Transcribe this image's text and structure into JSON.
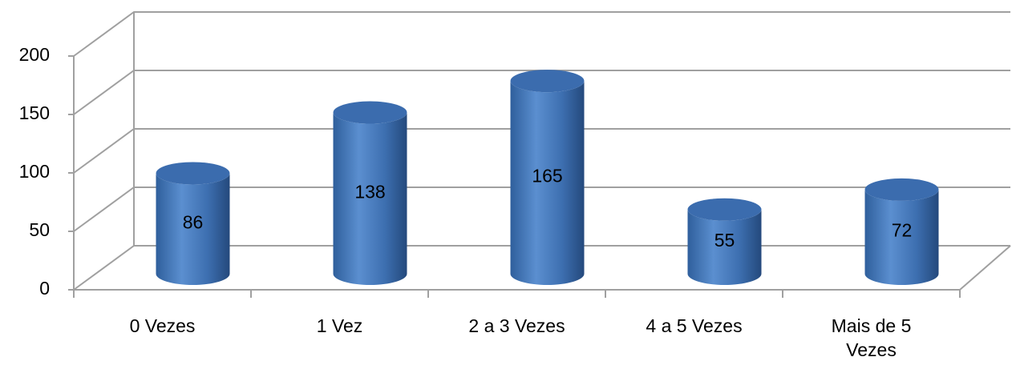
{
  "chart_data": {
    "type": "cylinder",
    "categories": [
      "0 Vezes",
      "1 Vez",
      "2 a 3 Vezes",
      "4 a 5 Vezes",
      "Mais de 5 Vezes"
    ],
    "values": [
      86,
      138,
      165,
      55,
      72
    ],
    "color": "#4f81bd",
    "ylim": [
      0,
      200
    ],
    "yticks": [
      0,
      50,
      100,
      150,
      200
    ],
    "grid": true
  }
}
